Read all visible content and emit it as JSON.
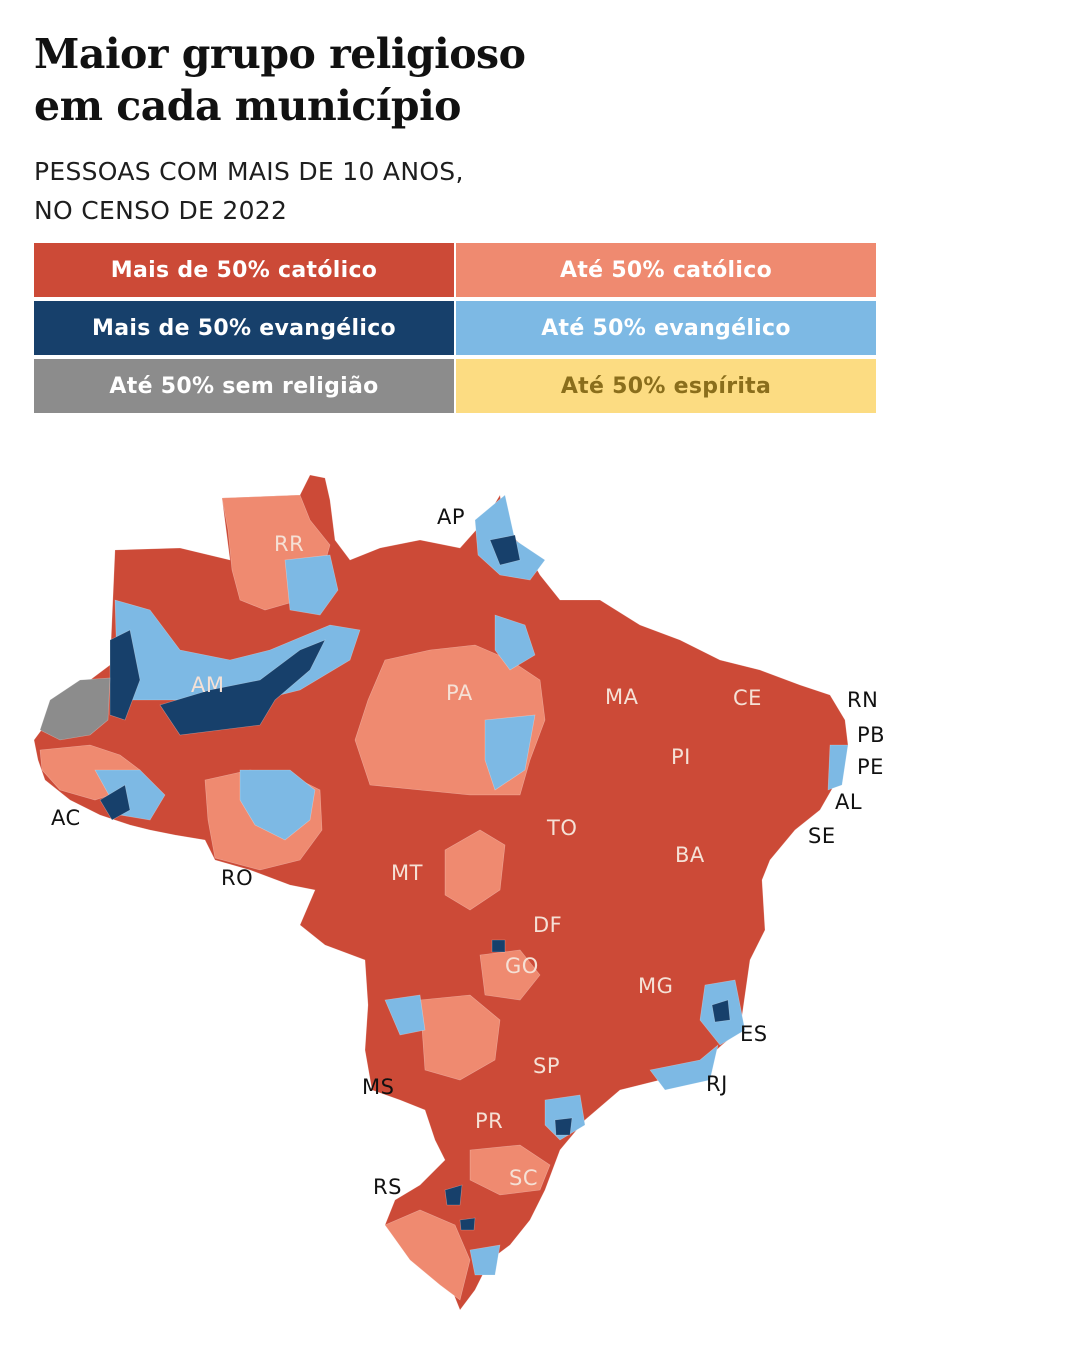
{
  "title_line1": "Maior grupo religioso",
  "title_line2": "em cada município",
  "subtitle_line1": "PESSOAS COM MAIS DE 10 ANOS,",
  "subtitle_line2": "NO CENSO DE 2022",
  "legend": [
    {
      "label": "Mais de 50% católico",
      "color": "#cc4a37",
      "text_color": "#ffffff"
    },
    {
      "label": "Até 50% católico",
      "color": "#ef8a70",
      "text_color": "#ffffff"
    },
    {
      "label": "Mais de 50% evangélico",
      "color": "#17406b",
      "text_color": "#ffffff"
    },
    {
      "label": "Até 50% evangélico",
      "color": "#7db9e4",
      "text_color": "#ffffff"
    },
    {
      "label": "Até 50% sem religião",
      "color": "#8c8c8c",
      "text_color": "#ffffff"
    },
    {
      "label": "Até 50% espírita",
      "color": "#fcdc82",
      "text_color": "#8a6e1c"
    }
  ],
  "state_labels": {
    "RR": "RR",
    "AP": "AP",
    "AM": "AM",
    "PA": "PA",
    "MA": "MA",
    "CE": "CE",
    "RN": "RN",
    "PB": "PB",
    "PE": "PE",
    "AL": "AL",
    "SE": "SE",
    "PI": "PI",
    "AC": "AC",
    "TO": "TO",
    "BA": "BA",
    "RO": "RO",
    "MT": "MT",
    "DF": "DF",
    "GO": "GO",
    "MG": "MG",
    "ES": "ES",
    "MS": "MS",
    "SP": "SP",
    "RJ": "RJ",
    "PR": "PR",
    "SC": "SC",
    "RS": "RS"
  }
}
